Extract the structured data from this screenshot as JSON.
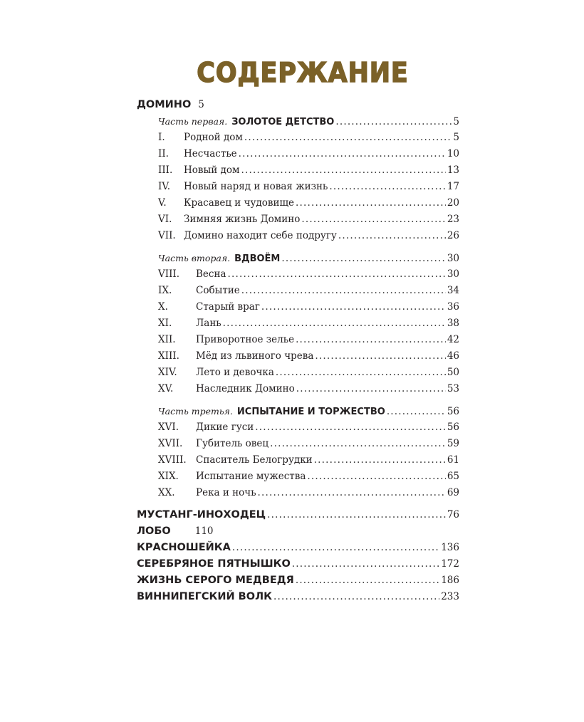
{
  "title": "СОДЕРЖАНИЕ",
  "colors": {
    "title": "#7b6128",
    "text": "#231f20"
  },
  "entries": [
    {
      "type": "story",
      "title": "ДОМИНО",
      "page": "5",
      "leader": false
    },
    {
      "type": "part",
      "label": "Часть первая.",
      "title": "ЗОЛОТОЕ ДЕТСТВО",
      "page": "5"
    },
    {
      "type": "chapter",
      "num": "I.",
      "title": "Родной дом",
      "page": "5",
      "indent": "p1"
    },
    {
      "type": "chapter",
      "num": "II.",
      "title": "Несчастье",
      "page": "10",
      "indent": "p1"
    },
    {
      "type": "chapter",
      "num": "III.",
      "title": "Новый дом",
      "page": "13",
      "indent": "p1"
    },
    {
      "type": "chapter",
      "num": "IV.",
      "title": "Новый наряд и новая жизнь",
      "page": "17",
      "indent": "p1"
    },
    {
      "type": "chapter",
      "num": "V.",
      "title": "Красавец и чудовище",
      "page": "20",
      "indent": "p1"
    },
    {
      "type": "chapter",
      "num": "VI.",
      "title": "Зимняя жизнь Домино",
      "page": "23",
      "indent": "p1"
    },
    {
      "type": "chapter",
      "num": "VII.",
      "title": "Домино находит себе подругу",
      "page": "26",
      "indent": "p1"
    },
    {
      "type": "part",
      "label": "Часть вторая.",
      "title": "ВДВОЁМ",
      "page": "30"
    },
    {
      "type": "chapter",
      "num": "VIII.",
      "title": "Весна",
      "page": "30"
    },
    {
      "type": "chapter",
      "num": "IX.",
      "title": "Событие",
      "page": "34"
    },
    {
      "type": "chapter",
      "num": "X.",
      "title": "Старый враг",
      "page": "36"
    },
    {
      "type": "chapter",
      "num": "XI.",
      "title": "Лань",
      "page": "38"
    },
    {
      "type": "chapter",
      "num": "XII.",
      "title": "Приворотное зелье",
      "page": "42"
    },
    {
      "type": "chapter",
      "num": "XIII.",
      "title": "Мёд из львиного чрева",
      "page": "46"
    },
    {
      "type": "chapter",
      "num": "XIV.",
      "title": "Лето и девочка",
      "page": "50"
    },
    {
      "type": "chapter",
      "num": "XV.",
      "title": "Наследник Домино",
      "page": "53"
    },
    {
      "type": "part",
      "label": "Часть третья.",
      "title": "ИСПЫТАНИЕ И ТОРЖЕСТВО",
      "page": "56"
    },
    {
      "type": "chapter",
      "num": "XVI.",
      "title": "Дикие гуси",
      "page": "56"
    },
    {
      "type": "chapter",
      "num": "XVII.",
      "title": "Губитель овец",
      "page": "59"
    },
    {
      "type": "chapter",
      "num": "XVIII.",
      "title": "Спаситель Белогрудки",
      "page": "61"
    },
    {
      "type": "chapter",
      "num": "XIX.",
      "title": "Испытание мужества",
      "page": "65"
    },
    {
      "type": "chapter",
      "num": "XX.",
      "title": "Река и ночь",
      "page": "69"
    },
    {
      "type": "story",
      "title": "МУСТАНГ-ИНОХОДЕЦ",
      "page": "76",
      "leader": true,
      "gap": true
    },
    {
      "type": "story",
      "title": "ЛОБО",
      "page": "110",
      "leader": false
    },
    {
      "type": "story",
      "title": "КРАСНОШЕЙКА",
      "page": "136",
      "leader": true
    },
    {
      "type": "story",
      "title": "СЕРЕБРЯНОЕ ПЯТНЫШКО",
      "page": "172",
      "leader": true
    },
    {
      "type": "story",
      "title": "ЖИЗНЬ СЕРОГО МЕДВЕДЯ",
      "page": "186",
      "leader": true
    },
    {
      "type": "story",
      "title": "ВИННИПЕГСКИЙ ВОЛК",
      "page": "233",
      "leader": true
    }
  ]
}
